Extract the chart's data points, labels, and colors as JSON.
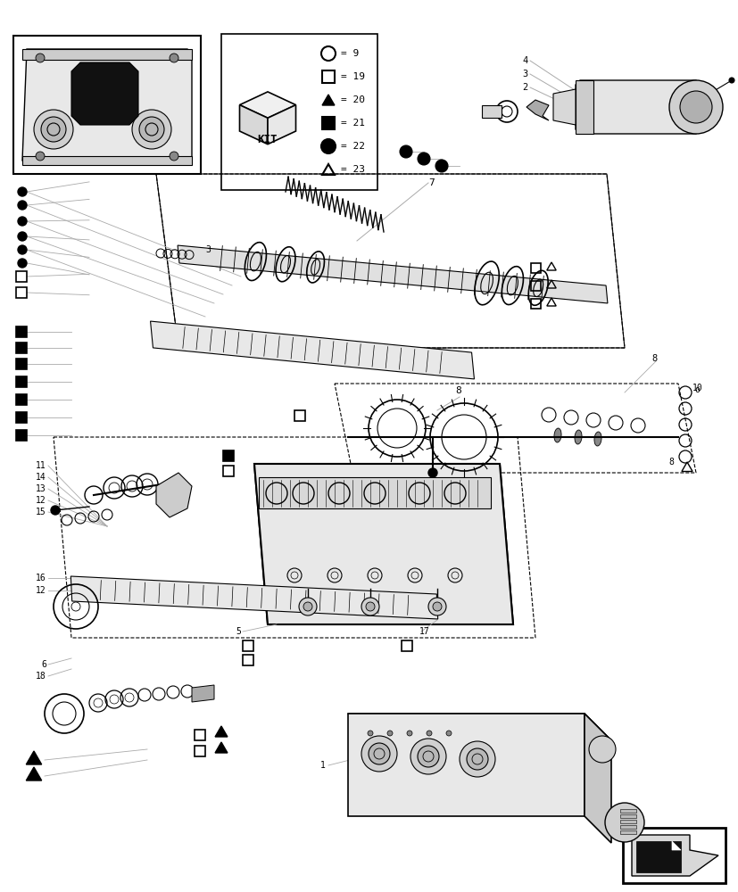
{
  "bg": "#ffffff",
  "lc": "#000000",
  "gc": "#aaaaaa",
  "dc": "#555555"
}
